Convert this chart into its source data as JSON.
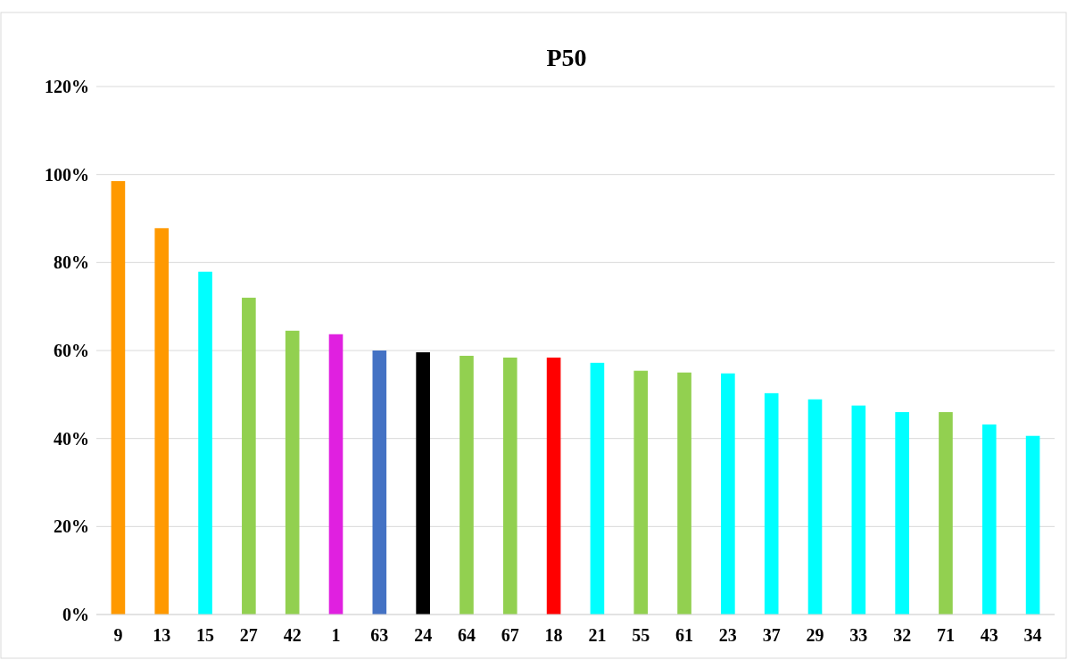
{
  "chart_data": {
    "type": "bar",
    "title": "P50",
    "categories": [
      "9",
      "13",
      "15",
      "27",
      "42",
      "1",
      "63",
      "24",
      "64",
      "67",
      "18",
      "21",
      "55",
      "61",
      "23",
      "37",
      "29",
      "33",
      "32",
      "71",
      "43",
      "34"
    ],
    "values": [
      98.5,
      87.8,
      77.9,
      72.0,
      64.5,
      63.7,
      60.0,
      59.6,
      58.8,
      58.4,
      58.4,
      57.2,
      55.4,
      55.0,
      54.8,
      50.3,
      48.9,
      47.5,
      46.0,
      46.0,
      43.2,
      40.6
    ],
    "colors": [
      "#ff9900",
      "#ff9900",
      "#00ffff",
      "#92d050",
      "#92d050",
      "#e020e0",
      "#4472c4",
      "#000000",
      "#92d050",
      "#92d050",
      "#ff0000",
      "#00ffff",
      "#92d050",
      "#92d050",
      "#00ffff",
      "#00ffff",
      "#00ffff",
      "#00ffff",
      "#00ffff",
      "#92d050",
      "#00ffff",
      "#00ffff"
    ],
    "ylim": [
      0,
      120
    ],
    "yticks": [
      {
        "value": 0,
        "label": "0%"
      },
      {
        "value": 20,
        "label": "20%"
      },
      {
        "value": 40,
        "label": "40%"
      },
      {
        "value": 60,
        "label": "60%"
      },
      {
        "value": 80,
        "label": "80%"
      },
      {
        "value": 100,
        "label": "100%"
      },
      {
        "value": 120,
        "label": "120%"
      }
    ],
    "grid": "y"
  }
}
